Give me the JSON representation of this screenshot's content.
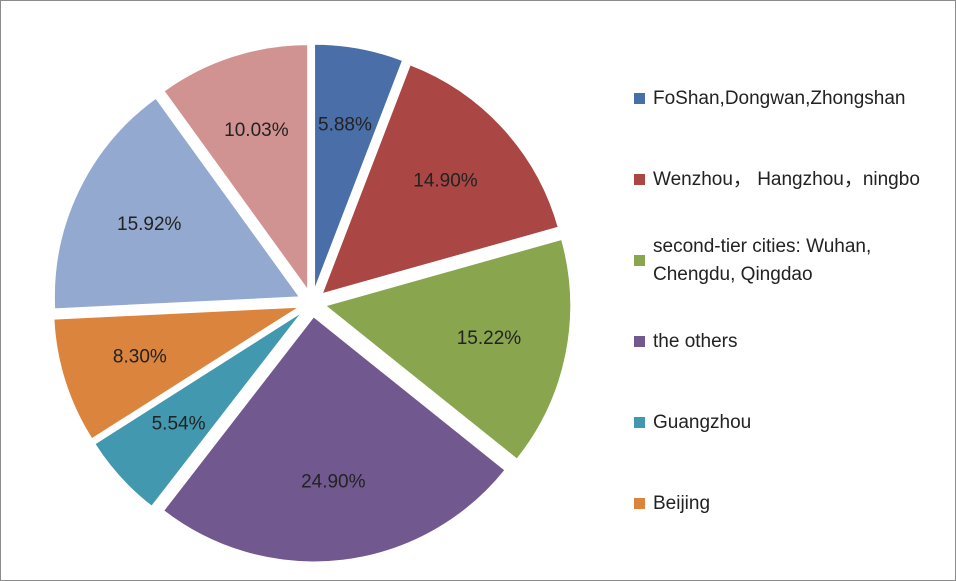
{
  "chart_data": {
    "type": "pie",
    "categories": [
      "FoShan,Dongwan,Zhongshan",
      "Wenzhou， Hangzhou，ningbo",
      "second-tier cities: Wuhan, Chengdu, Qingdao",
      "the others",
      "Guangzhou",
      "Beijing",
      null,
      null
    ],
    "values": [
      5.88,
      14.9,
      15.22,
      24.9,
      5.54,
      8.3,
      15.92,
      10.03
    ],
    "value_labels": [
      "5.88%",
      "14.90%",
      "15.22%",
      "24.90%",
      "5.54%",
      "8.30%",
      "15.92%",
      "10.03%"
    ],
    "colors": [
      "#4a6ea8",
      "#aa4643",
      "#89a54e",
      "#71588f",
      "#4198af",
      "#db843d",
      "#93a9cf",
      "#d19392"
    ],
    "legend": "right"
  }
}
